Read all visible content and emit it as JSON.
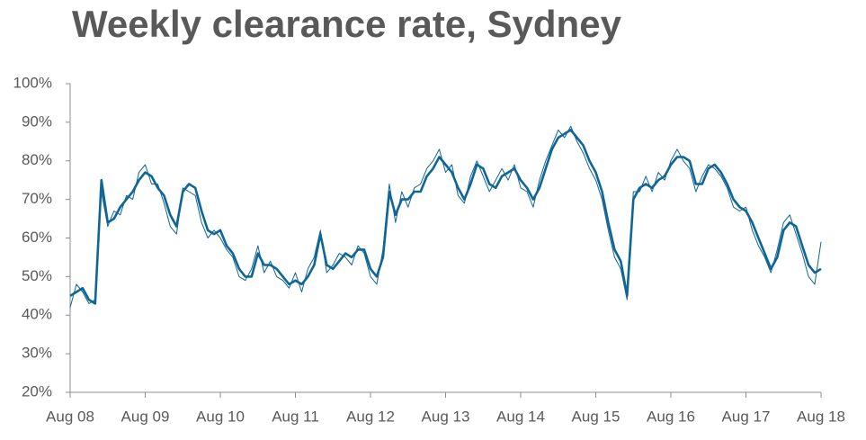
{
  "chart_data": {
    "type": "line",
    "title": "Weekly clearance rate, Sydney",
    "x": [
      "Aug 08",
      "Sep 08",
      "Oct 08",
      "Nov 08",
      "Dec 08",
      "Jan 09",
      "Feb 09",
      "Mar 09",
      "Apr 09",
      "May 09",
      "Jun 09",
      "Jul 09",
      "Aug 09",
      "Sep 09",
      "Oct 09",
      "Nov 09",
      "Dec 09",
      "Jan 10",
      "Feb 10",
      "Mar 10",
      "Apr 10",
      "May 10",
      "Jun 10",
      "Jul 10",
      "Aug 10",
      "Sep 10",
      "Oct 10",
      "Nov 10",
      "Dec 10",
      "Jan 11",
      "Feb 11",
      "Mar 11",
      "Apr 11",
      "May 11",
      "Jun 11",
      "Jul 11",
      "Aug 11",
      "Sep 11",
      "Oct 11",
      "Nov 11",
      "Dec 11",
      "Jan 12",
      "Feb 12",
      "Mar 12",
      "Apr 12",
      "May 12",
      "Jun 12",
      "Jul 12",
      "Aug 12",
      "Sep 12",
      "Oct 12",
      "Nov 12",
      "Dec 12",
      "Jan 13",
      "Feb 13",
      "Mar 13",
      "Apr 13",
      "May 13",
      "Jun 13",
      "Jul 13",
      "Aug 13",
      "Sep 13",
      "Oct 13",
      "Nov 13",
      "Dec 13",
      "Jan 14",
      "Feb 14",
      "Mar 14",
      "Apr 14",
      "May 14",
      "Jun 14",
      "Jul 14",
      "Aug 14",
      "Sep 14",
      "Oct 14",
      "Nov 14",
      "Dec 14",
      "Jan 15",
      "Feb 15",
      "Mar 15",
      "Apr 15",
      "May 15",
      "Jun 15",
      "Jul 15",
      "Aug 15",
      "Sep 15",
      "Oct 15",
      "Nov 15",
      "Dec 15",
      "Jan 16",
      "Feb 16",
      "Mar 16",
      "Apr 16",
      "May 16",
      "Jun 16",
      "Jul 16",
      "Aug 16",
      "Sep 16",
      "Oct 16",
      "Nov 16",
      "Dec 16",
      "Jan 17",
      "Feb 17",
      "Mar 17",
      "Apr 17",
      "May 17",
      "Jun 17",
      "Jul 17",
      "Aug 17",
      "Sep 17",
      "Oct 17",
      "Nov 17",
      "Dec 17",
      "Jan 18",
      "Feb 18",
      "Mar 18",
      "Apr 18",
      "May 18",
      "Jun 18",
      "Jul 18",
      "Aug 18"
    ],
    "series": [
      {
        "color": "#0f6596",
        "width": 1,
        "values": [
          42,
          48,
          46,
          43,
          44,
          72,
          63,
          67,
          66,
          71,
          70,
          77,
          79,
          74,
          74,
          69,
          63,
          61,
          73,
          72,
          71,
          64,
          60,
          62,
          60,
          57,
          55,
          50,
          49,
          52,
          58,
          51,
          54,
          50,
          49,
          47,
          51,
          46,
          52,
          55,
          62,
          51,
          53,
          56,
          55,
          53,
          58,
          56,
          50,
          48,
          57,
          74,
          64,
          72,
          68,
          73,
          74,
          78,
          80,
          83,
          77,
          79,
          71,
          69,
          76,
          80,
          76,
          72,
          75,
          78,
          75,
          79,
          73,
          72,
          68,
          75,
          80,
          84,
          88,
          86,
          89,
          85,
          82,
          78,
          75,
          70,
          62,
          55,
          52,
          44,
          72,
          72,
          76,
          72,
          77,
          75,
          80,
          83,
          80,
          78,
          72,
          76,
          79,
          78,
          76,
          73,
          68,
          67,
          68,
          62,
          58,
          55,
          51,
          57,
          64,
          66,
          61,
          56,
          50,
          48,
          59
        ]
      },
      {
        "color": "#0f6596",
        "width": 2.6,
        "values": [
          45,
          46,
          47,
          44,
          43,
          75,
          64,
          65,
          68,
          70,
          72,
          75,
          77,
          76,
          73,
          71,
          66,
          63,
          72,
          74,
          73,
          67,
          62,
          61,
          62,
          58,
          56,
          52,
          50,
          50,
          56,
          53,
          53,
          52,
          50,
          48,
          49,
          48,
          50,
          53,
          61,
          53,
          52,
          54,
          56,
          55,
          57,
          57,
          52,
          50,
          55,
          72,
          66,
          70,
          70,
          72,
          72,
          76,
          78,
          81,
          79,
          77,
          73,
          70,
          74,
          79,
          78,
          74,
          73,
          76,
          77,
          78,
          75,
          73,
          70,
          73,
          78,
          83,
          86,
          87,
          88,
          86,
          84,
          80,
          77,
          72,
          64,
          57,
          54,
          45,
          70,
          73,
          74,
          73,
          75,
          76,
          79,
          81,
          81,
          80,
          74,
          74,
          78,
          79,
          77,
          74,
          70,
          68,
          67,
          64,
          60,
          56,
          52,
          55,
          62,
          64,
          63,
          58,
          53,
          51,
          52
        ]
      }
    ],
    "xticks": [
      "Aug 08",
      "Aug 09",
      "Aug 10",
      "Aug 11",
      "Aug 12",
      "Aug 13",
      "Aug 14",
      "Aug 15",
      "Aug 16",
      "Aug 17",
      "Aug 18"
    ],
    "ylim": [
      20,
      100
    ],
    "yticks": [
      {
        "value": 20,
        "label": "20%"
      },
      {
        "value": 30,
        "label": "30%"
      },
      {
        "value": 40,
        "label": "40%"
      },
      {
        "value": 50,
        "label": "50%"
      },
      {
        "value": 60,
        "label": "60%"
      },
      {
        "value": 70,
        "label": "70%"
      },
      {
        "value": 80,
        "label": "80%"
      },
      {
        "value": 90,
        "label": "90%"
      },
      {
        "value": 100,
        "label": "100%"
      }
    ]
  }
}
